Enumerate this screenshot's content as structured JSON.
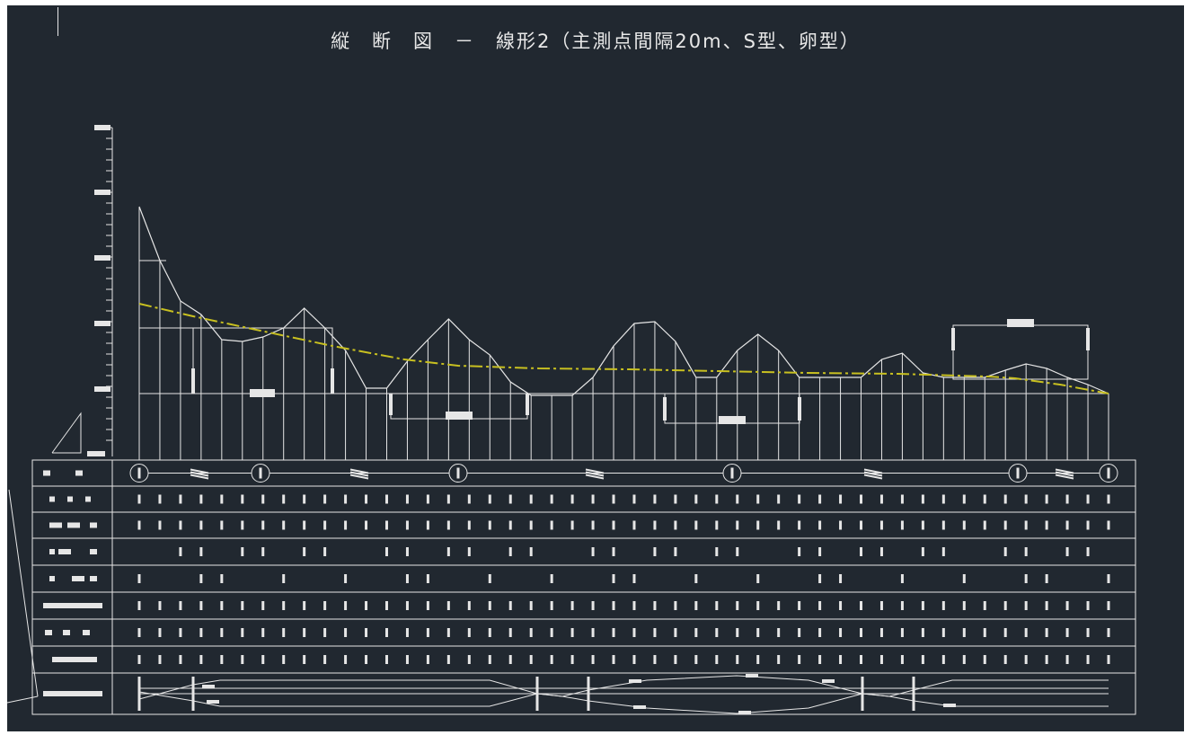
{
  "drawing": {
    "title": "縦　断　図　－　線形2（主測点間隔20m、S型、卵型）",
    "background": "#212830",
    "line_color": "#e6e6e6",
    "grade_line_color": "#c8c020",
    "profile": {
      "ground_levels": [
        230,
        290,
        335,
        350,
        378,
        380,
        375,
        365,
        343,
        365,
        390,
        432,
        432,
        402,
        378,
        355,
        378,
        395,
        425,
        440,
        440,
        440,
        420,
        385,
        360,
        358,
        380,
        420,
        420,
        390,
        372,
        390,
        420,
        420,
        420,
        420,
        400,
        393,
        415,
        420,
        420,
        420,
        412,
        405,
        410,
        420,
        428,
        438
      ]
    },
    "table_rows": [
      {
        "label": "",
        "icon": "legend-row"
      },
      {
        "label": "",
        "icon": "ticks"
      },
      {
        "label": "",
        "icon": "ticks"
      },
      {
        "label": "",
        "icon": "ticks"
      },
      {
        "label": "",
        "icon": "ticks"
      },
      {
        "label": "",
        "icon": "ticks"
      },
      {
        "label": "",
        "icon": "ticks"
      },
      {
        "label": "",
        "icon": "ticks"
      },
      {
        "label": "",
        "icon": "curvature"
      }
    ]
  }
}
